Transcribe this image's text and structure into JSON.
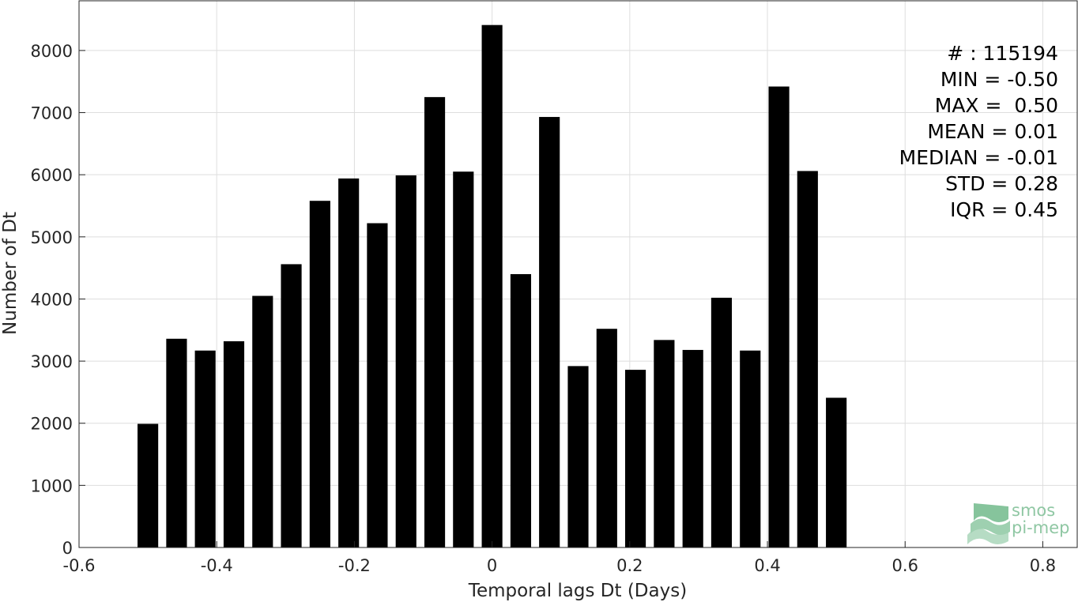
{
  "chart_data": {
    "type": "bar",
    "xlabel": "Temporal lags Dt (Days)",
    "ylabel": "Number of Dt",
    "xlim": [
      -0.6,
      0.85
    ],
    "ylim": [
      0,
      8800
    ],
    "xticks": [
      -0.6,
      -0.4,
      -0.2,
      0,
      0.2,
      0.4,
      0.6,
      0.8
    ],
    "xtick_labels": [
      "-0.6",
      "-0.4",
      "-0.2",
      "0",
      "0.2",
      "0.4",
      "0.6",
      "0.8"
    ],
    "yticks": [
      0,
      1000,
      2000,
      3000,
      4000,
      5000,
      6000,
      7000,
      8000
    ],
    "ytick_labels": [
      "0",
      "1000",
      "2000",
      "3000",
      "4000",
      "5000",
      "6000",
      "7000",
      "8000"
    ],
    "grid": true,
    "bar_color": "#000000",
    "x": [
      -0.5,
      -0.4583,
      -0.4167,
      -0.375,
      -0.3333,
      -0.2917,
      -0.25,
      -0.2083,
      -0.1667,
      -0.125,
      -0.0833,
      -0.0417,
      0,
      0.0417,
      0.0833,
      0.125,
      0.1667,
      0.2083,
      0.25,
      0.2917,
      0.3333,
      0.375,
      0.4167,
      0.4583,
      0.5
    ],
    "values": [
      1990,
      3360,
      3170,
      3320,
      4050,
      4560,
      5580,
      5940,
      5220,
      5990,
      7250,
      6050,
      8410,
      4400,
      6930,
      2920,
      3520,
      2860,
      3340,
      3180,
      4020,
      3170,
      7420,
      6060,
      2410
    ],
    "stats": [
      "# : 115194",
      "MIN = -0.50",
      "MAX =  0.50",
      "MEAN = 0.01",
      "MEDIAN = -0.01",
      "STD = 0.28",
      "IQR = 0.45"
    ]
  },
  "logo": {
    "line1": "smos",
    "line2": "pi-mep",
    "color": "#8fc7a3"
  }
}
